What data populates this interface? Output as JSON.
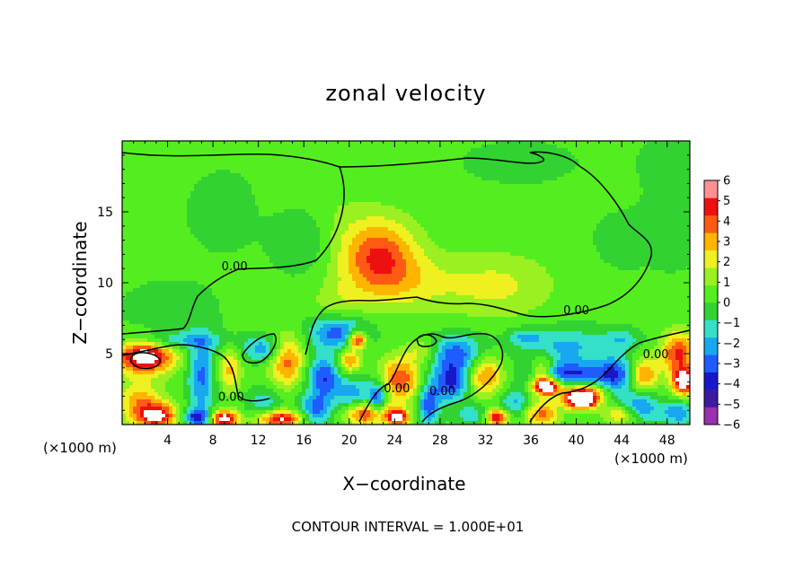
{
  "chart_data": {
    "type": "heatmap",
    "title": "zonal velocity",
    "xlabel": "X−coordinate",
    "ylabel": "Z−coordinate",
    "x_unit_left": "(×1000 m)",
    "x_unit_right": "(×1000 m)",
    "footer": "CONTOUR INTERVAL = 1.000E+01",
    "xlim": [
      0,
      50
    ],
    "ylim": [
      0,
      20
    ],
    "xticks": [
      4,
      8,
      12,
      16,
      20,
      24,
      28,
      32,
      36,
      40,
      44,
      48
    ],
    "yticks": [
      5,
      10,
      15
    ],
    "colorbar": {
      "range": [
        -6,
        6
      ],
      "ticks": [
        "6",
        "5",
        "4",
        "3",
        "2",
        "1",
        "0",
        "−1",
        "−2",
        "−3",
        "−4",
        "−5",
        "−6"
      ],
      "colors": [
        "#9a2fb0",
        "#3d1aa0",
        "#1818c8",
        "#1f5cff",
        "#18a8f0",
        "#34e0c8",
        "#32d232",
        "#54ee20",
        "#9af020",
        "#eef020",
        "#ffb400",
        "#ff5a14",
        "#ee1010",
        "#ff9090"
      ]
    },
    "contour_labels": [
      {
        "text": "0.00",
        "x": 9.9,
        "y": 11.1
      },
      {
        "text": "0.00",
        "x": 9.6,
        "y": 1.9
      },
      {
        "text": "0.00",
        "x": 40.0,
        "y": 8.0
      },
      {
        "text": "0.00",
        "x": 47.0,
        "y": 4.9
      },
      {
        "text": "0.00",
        "x": 24.2,
        "y": 2.5
      },
      {
        "text": "0.00",
        "x": 28.2,
        "y": 2.3
      }
    ],
    "anomalies": [
      {
        "x": 22.5,
        "y": 12.0,
        "a": 3.4,
        "b": 2.6,
        "v": 4.6
      },
      {
        "x": 25.0,
        "y": 10.0,
        "a": 4.5,
        "b": 2.0,
        "v": 1.8
      },
      {
        "x": 33.0,
        "y": 9.8,
        "a": 5.0,
        "b": 2.3,
        "v": 2.0
      },
      {
        "x": 19.0,
        "y": 8.5,
        "a": 2.5,
        "b": 1.6,
        "v": 1.2
      },
      {
        "x": 17.0,
        "y": 15.0,
        "a": 3.5,
        "b": 2.5,
        "v": 0.9
      },
      {
        "x": 9.0,
        "y": 15.0,
        "a": 4.0,
        "b": 3.5,
        "v": -0.5
      },
      {
        "x": 16.0,
        "y": 13.5,
        "a": 2.5,
        "b": 2.5,
        "v": -1.6
      },
      {
        "x": 44.0,
        "y": 13.0,
        "a": 2.5,
        "b": 2.0,
        "v": -0.7
      },
      {
        "x": 48.5,
        "y": 14.0,
        "a": 2.5,
        "b": 3.0,
        "v": -0.8
      },
      {
        "x": 35.0,
        "y": 18.5,
        "a": 5.0,
        "b": 1.5,
        "v": -0.7
      },
      {
        "x": 48.5,
        "y": 18.5,
        "a": 3.0,
        "b": 2.0,
        "v": -0.7
      },
      {
        "x": 4.0,
        "y": 8.0,
        "a": 4.0,
        "b": 2.0,
        "v": -0.8
      },
      {
        "x": 2.0,
        "y": 4.8,
        "a": 2.6,
        "b": 1.2,
        "v": 7.0
      },
      {
        "x": 4.5,
        "y": 5.9,
        "a": 4.5,
        "b": 0.6,
        "v": -2.3
      },
      {
        "x": 7.0,
        "y": 3.5,
        "a": 1.2,
        "b": 2.8,
        "v": -3.5
      },
      {
        "x": 9.5,
        "y": 3.8,
        "a": 1.0,
        "b": 1.5,
        "v": 3.0
      },
      {
        "x": 1.5,
        "y": 1.8,
        "a": 2.0,
        "b": 1.3,
        "v": 3.0
      },
      {
        "x": 3.0,
        "y": 0.6,
        "a": 2.0,
        "b": 0.9,
        "v": 6.0
      },
      {
        "x": 6.5,
        "y": 0.5,
        "a": 1.3,
        "b": 0.6,
        "v": -4.5
      },
      {
        "x": 9.0,
        "y": 0.4,
        "a": 1.2,
        "b": 0.6,
        "v": 7.0
      },
      {
        "x": 12.5,
        "y": 5.3,
        "a": 1.8,
        "b": 0.9,
        "v": -3.0
      },
      {
        "x": 14.5,
        "y": 4.5,
        "a": 1.5,
        "b": 1.8,
        "v": 4.3
      },
      {
        "x": 12.5,
        "y": 1.5,
        "a": 1.5,
        "b": 1.0,
        "v": -2.0
      },
      {
        "x": 17.0,
        "y": 1.0,
        "a": 1.5,
        "b": 1.1,
        "v": -3.5
      },
      {
        "x": 14.0,
        "y": 0.4,
        "a": 2.0,
        "b": 0.6,
        "v": 6.0
      },
      {
        "x": 19.0,
        "y": 6.5,
        "a": 2.5,
        "b": 1.2,
        "v": -4.0
      },
      {
        "x": 20.7,
        "y": 6.0,
        "a": 0.8,
        "b": 0.6,
        "v": 6.5
      },
      {
        "x": 20.0,
        "y": 4.5,
        "a": 1.0,
        "b": 0.9,
        "v": 4.0
      },
      {
        "x": 17.8,
        "y": 3.3,
        "a": 1.5,
        "b": 1.5,
        "v": -4.2
      },
      {
        "x": 20.5,
        "y": 2.0,
        "a": 1.5,
        "b": 1.3,
        "v": -3.0
      },
      {
        "x": 21.5,
        "y": 0.8,
        "a": 2.0,
        "b": 0.9,
        "v": 5.5
      },
      {
        "x": 24.5,
        "y": 3.2,
        "a": 1.8,
        "b": 1.6,
        "v": 4.5
      },
      {
        "x": 24.3,
        "y": 0.5,
        "a": 1.0,
        "b": 0.6,
        "v": 6.0
      },
      {
        "x": 27.0,
        "y": 1.5,
        "a": 1.0,
        "b": 1.5,
        "v": -4.0
      },
      {
        "x": 29.5,
        "y": 5.0,
        "a": 2.5,
        "b": 1.3,
        "v": -3.8
      },
      {
        "x": 29.0,
        "y": 3.0,
        "a": 1.5,
        "b": 1.3,
        "v": -4.5
      },
      {
        "x": 32.0,
        "y": 3.5,
        "a": 1.6,
        "b": 1.5,
        "v": 4.0
      },
      {
        "x": 31.0,
        "y": 0.7,
        "a": 1.5,
        "b": 0.8,
        "v": -2.0
      },
      {
        "x": 33.0,
        "y": 0.5,
        "a": 1.0,
        "b": 0.6,
        "v": 6.0
      },
      {
        "x": 35.5,
        "y": 6.2,
        "a": 1.5,
        "b": 0.6,
        "v": -2.0
      },
      {
        "x": 37.0,
        "y": 3.5,
        "a": 1.0,
        "b": 1.4,
        "v": 4.0
      },
      {
        "x": 39.0,
        "y": 5.5,
        "a": 4.0,
        "b": 1.3,
        "v": -2.5
      },
      {
        "x": 39.5,
        "y": 3.5,
        "a": 3.5,
        "b": 0.9,
        "v": -4.5
      },
      {
        "x": 37.5,
        "y": 2.7,
        "a": 1.2,
        "b": 0.6,
        "v": 6.5
      },
      {
        "x": 40.5,
        "y": 2.2,
        "a": 2.0,
        "b": 0.8,
        "v": 4.5
      },
      {
        "x": 40.5,
        "y": 1.7,
        "a": 1.3,
        "b": 0.6,
        "v": 7.0
      },
      {
        "x": 37.0,
        "y": 0.7,
        "a": 1.5,
        "b": 0.8,
        "v": 4.0
      },
      {
        "x": 43.5,
        "y": 3.5,
        "a": 1.5,
        "b": 1.3,
        "v": -3.5
      },
      {
        "x": 46.0,
        "y": 3.5,
        "a": 1.2,
        "b": 1.2,
        "v": 4.0
      },
      {
        "x": 45.5,
        "y": 1.2,
        "a": 1.8,
        "b": 1.1,
        "v": -3.5
      },
      {
        "x": 49.0,
        "y": 5.0,
        "a": 1.5,
        "b": 1.5,
        "v": 5.0
      },
      {
        "x": 49.5,
        "y": 3.0,
        "a": 1.0,
        "b": 0.9,
        "v": 7.0
      },
      {
        "x": 44.0,
        "y": 6.0,
        "a": 1.5,
        "b": 0.7,
        "v": -1.8
      },
      {
        "x": 49.0,
        "y": 0.8,
        "a": 1.5,
        "b": 0.8,
        "v": -3.0
      },
      {
        "x": 44.0,
        "y": 0.7,
        "a": 1.5,
        "b": 0.7,
        "v": 3.5
      },
      {
        "x": 26.5,
        "y": 5.2,
        "a": 1.5,
        "b": 0.8,
        "v": 2.0
      },
      {
        "x": 34.5,
        "y": 1.5,
        "a": 1.3,
        "b": 1.0,
        "v": -2.5
      },
      {
        "x": 22.5,
        "y": 1.8,
        "a": 0.8,
        "b": 1.2,
        "v": -4.5
      }
    ]
  }
}
